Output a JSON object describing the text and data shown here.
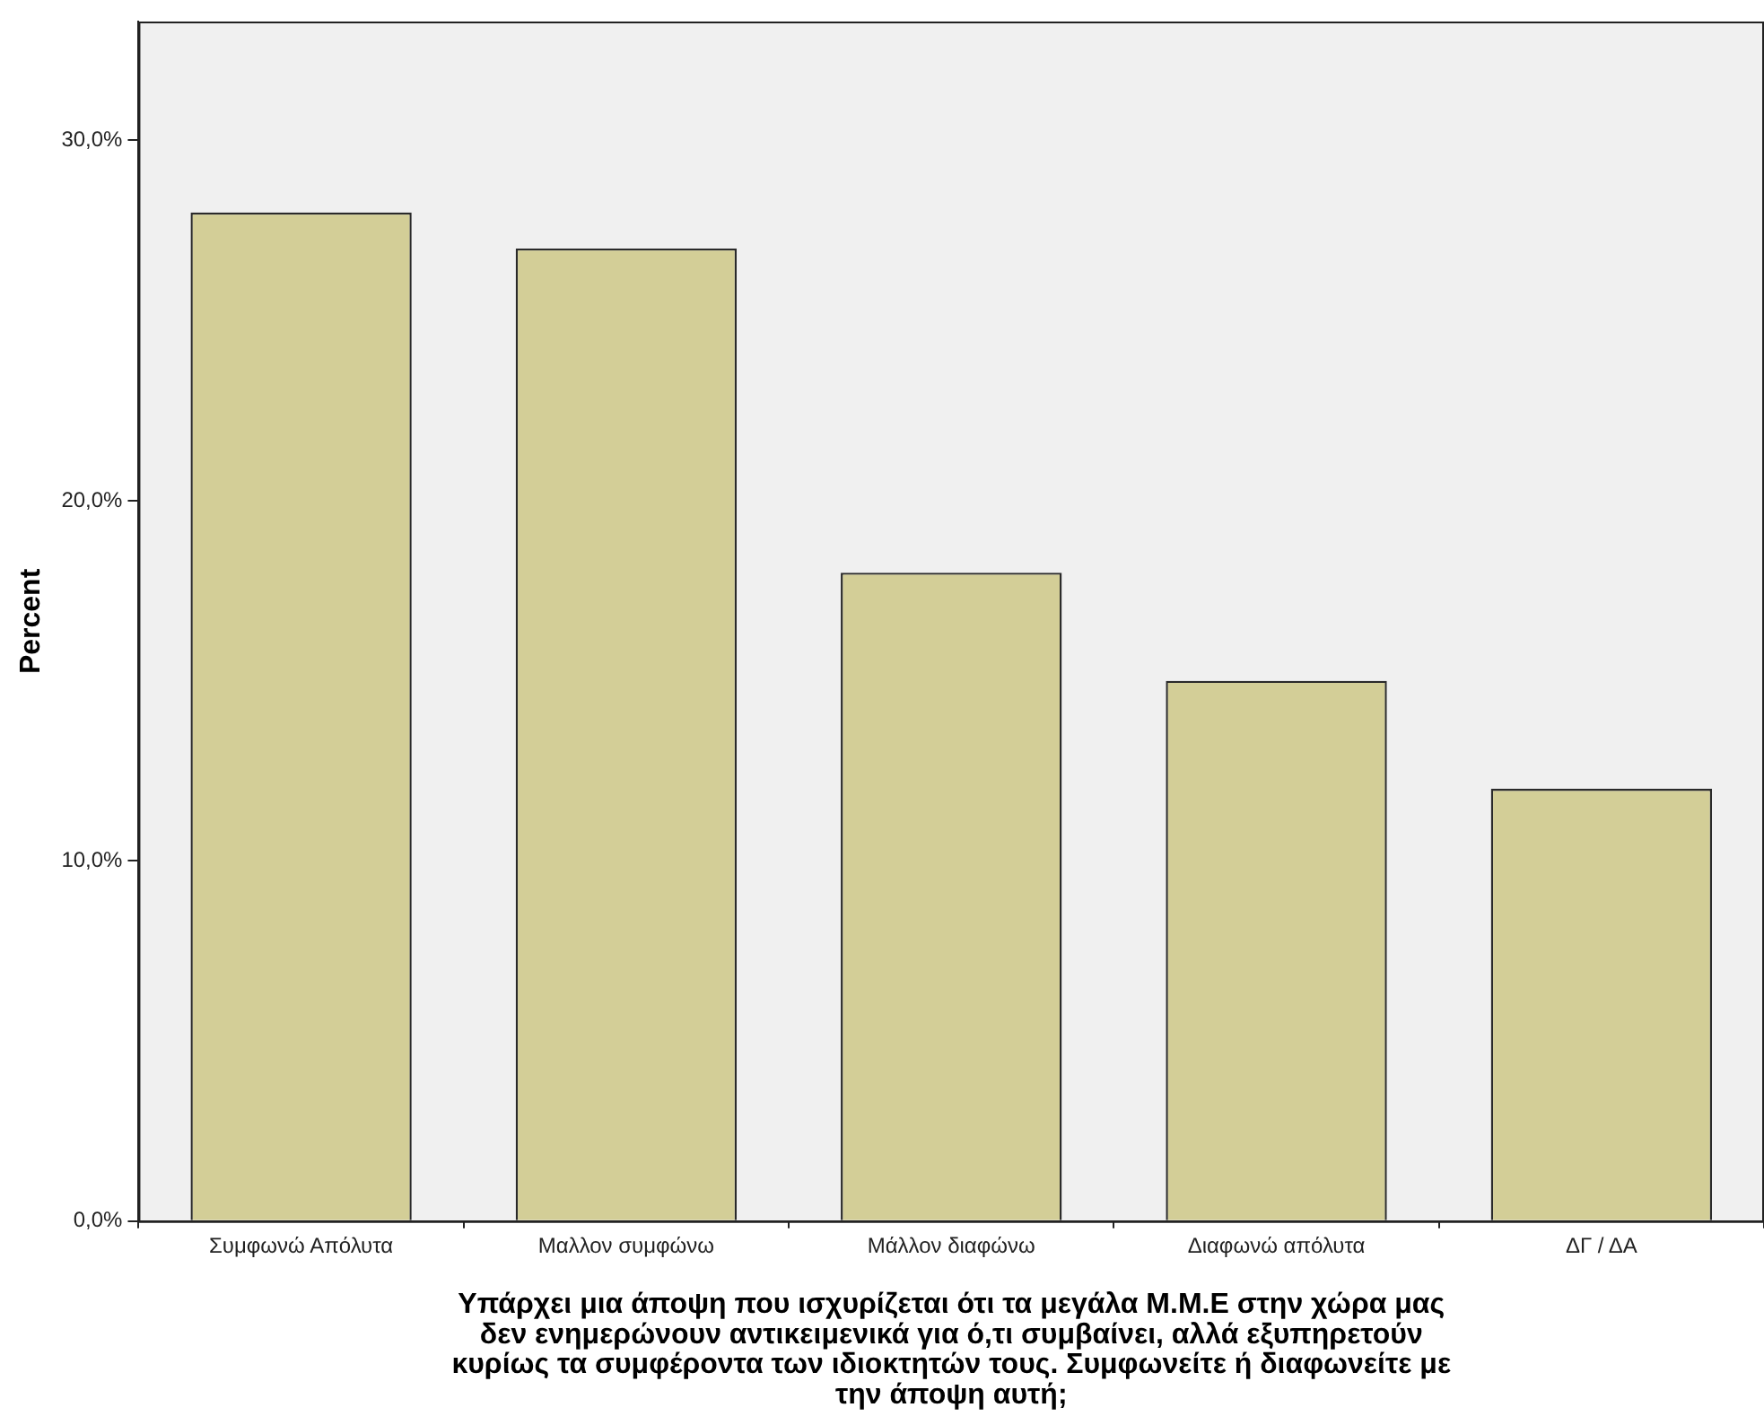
{
  "chart_data": {
    "type": "bar",
    "xlabel": "Υπάρχει μια άποψη που ισχυρίζεται ότι τα μεγάλα Μ.Μ.Ε στην χώρα μας\nδεν ενημερώνουν αντικειμενικά για ό,τι συμβαίνει, αλλά εξυπηρετούν\nκυρίως τα συμφέροντα των ιδιοκτητών τους. Συμφωνείτε ή διαφωνείτε με\nτην άποψη αυτή;",
    "ylabel": "Percent",
    "categories": [
      "Συμφωνώ Απόλυτα",
      "Μαλλον συμφώνω",
      "Μάλλον διαφώνω",
      "Διαφωνώ απόλυτα",
      "ΔΓ / ΔΑ"
    ],
    "values": [
      28,
      27,
      18,
      15,
      12
    ],
    "color": "#d3ce97",
    "ylim": [
      0,
      33.3
    ],
    "yticks": [
      {
        "value": 0,
        "label": "0,0%"
      },
      {
        "value": 10,
        "label": "10,0%"
      },
      {
        "value": 20,
        "label": "20,0%"
      },
      {
        "value": 30,
        "label": "30,0%"
      }
    ]
  }
}
